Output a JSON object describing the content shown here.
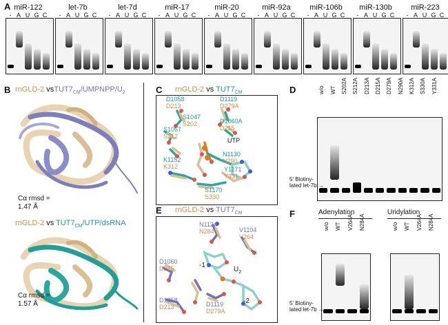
{
  "panelA": {
    "label": "A",
    "lanes": [
      "-",
      "A",
      "U",
      "G",
      "C"
    ],
    "mirnas": [
      "miR-122",
      "let-7b",
      "let-7d",
      "miR-17",
      "miR-20",
      "miR-92a",
      "miR-106b",
      "miR-130b",
      "miR-223"
    ]
  },
  "panelB": {
    "label": "B",
    "top_title_a": "rnGLD-2",
    "top_title_vs": " vs",
    "top_title_b": "TUT7",
    "top_title_sub": "CM",
    "top_title_c": "/UMPNPP/U",
    "top_title_sub2": "2",
    "top_rmsd_line1": "Cα rmsd =",
    "top_rmsd_line2": "1.47 Å",
    "bot_title_a": "rnGLD-2",
    "bot_title_vs": " vs ",
    "bot_title_b": "TUT7",
    "bot_title_sub": "CM",
    "bot_title_c": "/UTP/dsRNA",
    "bot_rmsd_line1": "Cα rmsd =",
    "bot_rmsd_line2": "1.57 Å"
  },
  "panelC": {
    "label": "C",
    "title_a": "rnGLD-2",
    "title_vs": " vs ",
    "title_b": "TUT7",
    "title_sub": "CM",
    "atoms": [
      {
        "top": "D1058",
        "bot": "D213"
      },
      {
        "top": "D1119",
        "bot": "D279A"
      },
      {
        "top": "S1047",
        "bot": "S202"
      },
      {
        "top": "D1060A",
        "bot": "D215"
      },
      {
        "top": "S1057",
        "bot": "S212"
      },
      {
        "top": "UTP",
        "bot": ""
      },
      {
        "top": "N1130",
        "bot": "N290"
      },
      {
        "top": "K1152",
        "bot": "K312"
      },
      {
        "top": "Y1171",
        "bot": "Y331"
      },
      {
        "top": "S1170",
        "bot": "S330"
      }
    ]
  },
  "panelD": {
    "label": "D",
    "lanes": [
      "w/o",
      "WT",
      "S202A",
      "S212A",
      "D213A",
      "D215A",
      "D279A",
      "N290A",
      "K312A",
      "S330A",
      "Y331A"
    ],
    "marker_line1": "5' Biotiny-",
    "marker_line2": "lated let-7b"
  },
  "panelE": {
    "label": "E",
    "title_a": "rnGLD-2",
    "title_vs": " vs ",
    "title_b": "TUT7",
    "title_sub": "CM",
    "atoms": [
      {
        "top": "N1124",
        "bot": "N284"
      },
      {
        "top": "V1104",
        "bot": "V264"
      },
      {
        "top": "D1060",
        "bot": "D215"
      },
      {
        "top": "-1",
        "bot": ""
      },
      {
        "top": "U",
        "bot": ""
      },
      {
        "top": "-2",
        "bot": ""
      },
      {
        "top": "D1058",
        "bot": "D213"
      },
      {
        "top": "D1119",
        "bot": "D279A"
      }
    ],
    "u_sub": "2"
  },
  "panelF": {
    "label": "F",
    "adenylation": "Adenylation",
    "uridylation": "Uridylation",
    "lanes": [
      "w/o",
      "WT",
      "V264A",
      "N284A"
    ],
    "marker_line1": "5' Biotiny-",
    "marker_line2": "lated let-7b"
  },
  "colors": {
    "tan": "#c8904a",
    "purple": "#6f72b6",
    "teal": "#1e9a92"
  }
}
